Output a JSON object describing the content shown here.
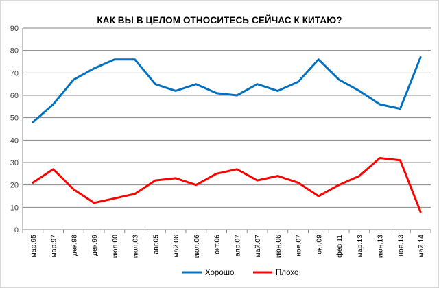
{
  "chart_data": {
    "type": "line",
    "title": "КАК ВЫ В ЦЕЛОМ ОТНОСИТЕСЬ СЕЙЧАС К КИТАЮ?",
    "categories": [
      "мар.95",
      "мар.97",
      "дек.98",
      "дек.99",
      "июл.00",
      "июл.03",
      "авг.05",
      "май.06",
      "июл.06",
      "окт.06",
      "апр.07",
      "май.07",
      "июн.06",
      "ноя.07",
      "окт.09",
      "фев.11",
      "мар.13",
      "июн.13",
      "ноя.13",
      "май.14"
    ],
    "series": [
      {
        "name": "Хорошо",
        "color": "#0070c0",
        "values": [
          48,
          56,
          67,
          72,
          76,
          76,
          65,
          62,
          65,
          61,
          60,
          65,
          62,
          66,
          76,
          67,
          62,
          56,
          54,
          77
        ]
      },
      {
        "name": "Плохо",
        "color": "#ff0000",
        "values": [
          21,
          27,
          18,
          12,
          14,
          16,
          22,
          23,
          20,
          25,
          27,
          22,
          24,
          21,
          15,
          20,
          24,
          32,
          31,
          8
        ]
      }
    ],
    "ylim": [
      0,
      90
    ],
    "yticks": [
      0,
      10,
      20,
      30,
      40,
      50,
      60,
      70,
      80,
      90
    ],
    "grid": true,
    "legend_position": "bottom"
  }
}
